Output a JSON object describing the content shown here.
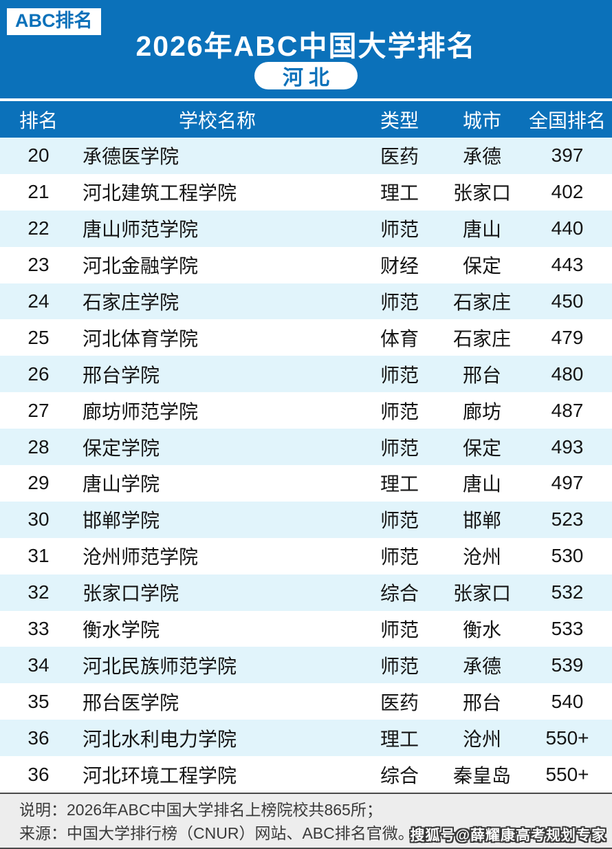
{
  "header": {
    "badge": "ABC排名",
    "title": "2026年ABC中国大学排名",
    "province": "河北"
  },
  "table": {
    "columns": [
      "排名",
      "学校名称",
      "类型",
      "城市",
      "全国排名"
    ],
    "rows": [
      {
        "rank": "20",
        "school": "承德医学院",
        "type": "医药",
        "city": "承德",
        "national_rank": "397"
      },
      {
        "rank": "21",
        "school": "河北建筑工程学院",
        "type": "理工",
        "city": "张家口",
        "national_rank": "402"
      },
      {
        "rank": "22",
        "school": "唐山师范学院",
        "type": "师范",
        "city": "唐山",
        "national_rank": "440"
      },
      {
        "rank": "23",
        "school": "河北金融学院",
        "type": "财经",
        "city": "保定",
        "national_rank": "443"
      },
      {
        "rank": "24",
        "school": "石家庄学院",
        "type": "师范",
        "city": "石家庄",
        "national_rank": "450"
      },
      {
        "rank": "25",
        "school": "河北体育学院",
        "type": "体育",
        "city": "石家庄",
        "national_rank": "479"
      },
      {
        "rank": "26",
        "school": "邢台学院",
        "type": "师范",
        "city": "邢台",
        "national_rank": "480"
      },
      {
        "rank": "27",
        "school": "廊坊师范学院",
        "type": "师范",
        "city": "廊坊",
        "national_rank": "487"
      },
      {
        "rank": "28",
        "school": "保定学院",
        "type": "师范",
        "city": "保定",
        "national_rank": "493"
      },
      {
        "rank": "29",
        "school": "唐山学院",
        "type": "理工",
        "city": "唐山",
        "national_rank": "497"
      },
      {
        "rank": "30",
        "school": "邯郸学院",
        "type": "师范",
        "city": "邯郸",
        "national_rank": "523"
      },
      {
        "rank": "31",
        "school": "沧州师范学院",
        "type": "师范",
        "city": "沧州",
        "national_rank": "530"
      },
      {
        "rank": "32",
        "school": "张家口学院",
        "type": "综合",
        "city": "张家口",
        "national_rank": "532"
      },
      {
        "rank": "33",
        "school": "衡水学院",
        "type": "师范",
        "city": "衡水",
        "national_rank": "533"
      },
      {
        "rank": "34",
        "school": "河北民族师范学院",
        "type": "师范",
        "city": "承德",
        "national_rank": "539"
      },
      {
        "rank": "35",
        "school": "邢台医学院",
        "type": "医药",
        "city": "邢台",
        "national_rank": "540"
      },
      {
        "rank": "36",
        "school": "河北水利电力学院",
        "type": "理工",
        "city": "沧州",
        "national_rank": "550+"
      },
      {
        "rank": "36",
        "school": "河北环境工程学院",
        "type": "综合",
        "city": "秦皇岛",
        "national_rank": "550+"
      }
    ]
  },
  "footer": {
    "note": "说明：2026年ABC中国大学排名上榜院校共865所；",
    "source": "来源：中国大学排行榜（CNUR）网站、ABC排名官微。",
    "watermark": "搜狐号@薛耀康高考规划专家"
  },
  "colors": {
    "primary_blue": "#0b71ba",
    "row_alt_blue": "#e1f4fb",
    "footer_bg": "#ededed"
  }
}
